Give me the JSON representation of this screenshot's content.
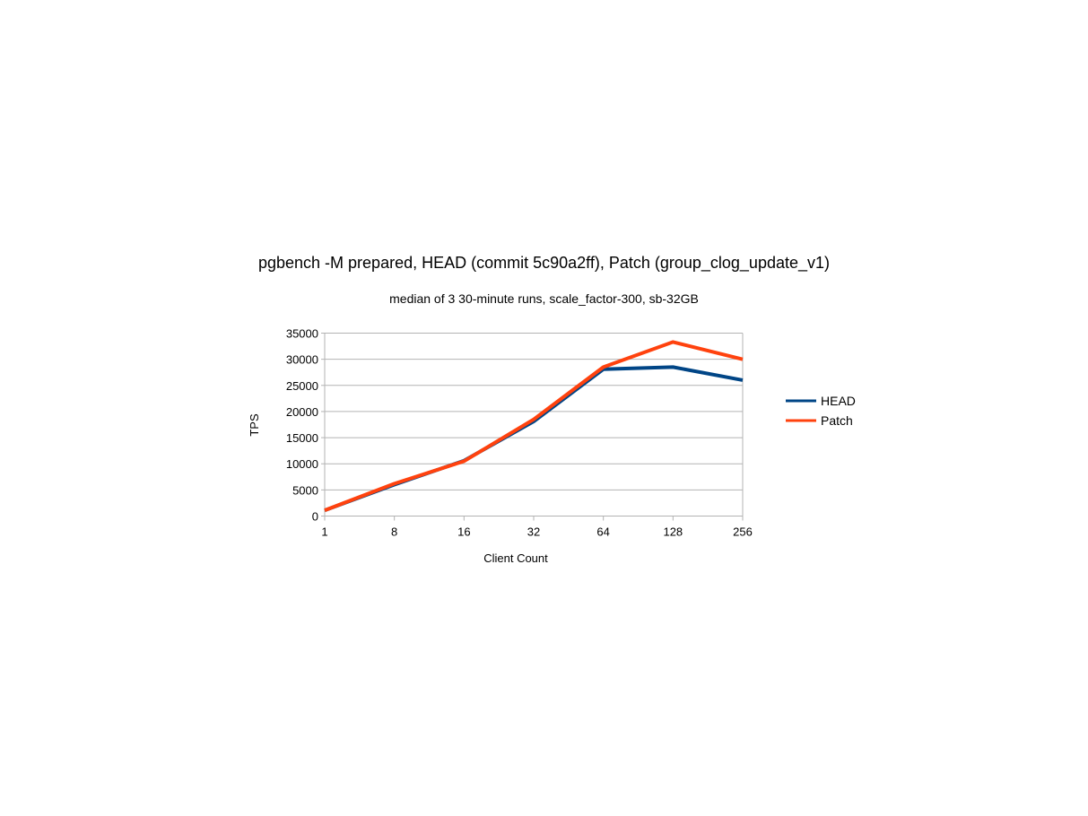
{
  "chart_data": {
    "type": "line",
    "title": "pgbench -M prepared, HEAD (commit 5c90a2ff), Patch (group_clog_update_v1)",
    "subtitle": "median of 3 30-minute runs, scale_factor-300, sb-32GB",
    "xlabel": "Client Count",
    "ylabel": "TPS",
    "categories": [
      "1",
      "8",
      "16",
      "32",
      "64",
      "128",
      "256"
    ],
    "ylim": [
      0,
      35000
    ],
    "yticks": [
      0,
      5000,
      10000,
      15000,
      20000,
      25000,
      30000,
      35000
    ],
    "grid": true,
    "legend_position": "right",
    "series": [
      {
        "name": "HEAD",
        "color": "#004586",
        "values": [
          1100,
          6000,
          10600,
          18100,
          28100,
          28500,
          26000
        ]
      },
      {
        "name": "Patch",
        "color": "#ff420e",
        "values": [
          1100,
          6200,
          10500,
          18500,
          28500,
          33300,
          30000
        ]
      }
    ]
  }
}
